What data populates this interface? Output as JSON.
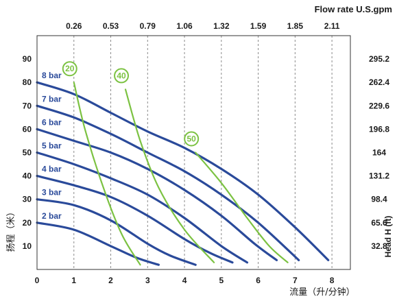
{
  "chart_data": {
    "type": "line",
    "top_axis_title": "Flow rate U.S.gpm",
    "top_tick_labels": [
      "0.26",
      "0.53",
      "0.79",
      "1.06",
      "1.32",
      "1.59",
      "1.85",
      "2.11"
    ],
    "xlabel": "流量（升/分钟）",
    "ylabel_left": "扬程（米）",
    "ylabel_right": "Head H (ft)",
    "xlim": [
      0,
      8.5
    ],
    "ylim": [
      0,
      100
    ],
    "x_ticks": [
      0,
      1,
      2,
      3,
      4,
      5,
      6,
      7,
      8
    ],
    "y_ticks": [
      10,
      20,
      30,
      40,
      50,
      60,
      70,
      80,
      90
    ],
    "right_tick_labels": [
      "32.8",
      "65.6",
      "98.4",
      "131.2",
      "164",
      "196.8",
      "229.6",
      "262.4",
      "295.2"
    ],
    "grid": "vertical dashed",
    "colors": {
      "pressure": "#2a4a9a",
      "pump": "#7cc242"
    },
    "pressure_series": [
      {
        "name": "2 bar",
        "x": [
          0,
          1,
          2,
          2.7,
          3.3
        ],
        "y": [
          20,
          17,
          10,
          5,
          2
        ]
      },
      {
        "name": "3 bar",
        "x": [
          0,
          1,
          2,
          3,
          3.6,
          4.3
        ],
        "y": [
          30,
          27.5,
          21,
          11,
          6,
          2
        ]
      },
      {
        "name": "4 bar",
        "x": [
          0,
          1,
          2,
          3,
          4,
          4.7,
          5.3
        ],
        "y": [
          40,
          36,
          31,
          23,
          13,
          7,
          3
        ]
      },
      {
        "name": "5 bar",
        "x": [
          0,
          1,
          2,
          3,
          4,
          5,
          5.7
        ],
        "y": [
          50,
          45,
          39,
          32,
          22,
          10,
          3
        ]
      },
      {
        "name": "6 bar",
        "x": [
          0,
          1,
          2,
          3,
          4,
          5,
          5.9,
          6.5
        ],
        "y": [
          60,
          55,
          50,
          43,
          34,
          23,
          11,
          4
        ]
      },
      {
        "name": "7 bar",
        "x": [
          0,
          1,
          2,
          3,
          4,
          5,
          6,
          7.1
        ],
        "y": [
          70,
          65,
          58,
          50,
          42,
          32,
          20,
          4
        ]
      },
      {
        "name": "8 bar",
        "x": [
          0,
          1,
          2,
          3,
          4,
          5,
          6,
          7,
          7.9
        ],
        "y": [
          80,
          75,
          67,
          59,
          52,
          43,
          32,
          18,
          4
        ]
      }
    ],
    "pump_series": [
      {
        "name": "20",
        "x": [
          1.0,
          1.3,
          1.8,
          2.3,
          2.8
        ],
        "y": [
          80,
          60,
          35,
          15,
          2
        ]
      },
      {
        "name": "40",
        "x": [
          2.4,
          2.8,
          3.3,
          4.0,
          4.8
        ],
        "y": [
          77,
          55,
          35,
          17,
          3
        ]
      },
      {
        "name": "50",
        "x": [
          4.3,
          5.0,
          5.7,
          6.3,
          6.8
        ],
        "y": [
          50,
          37,
          22,
          10,
          3
        ]
      }
    ]
  }
}
